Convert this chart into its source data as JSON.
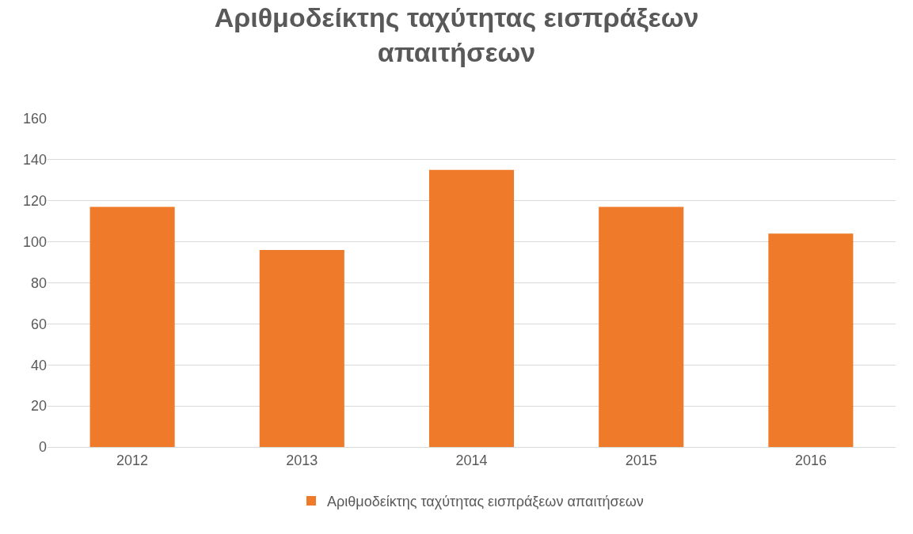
{
  "chart_data": {
    "type": "bar",
    "title": "Αριθμοδείκτης ταχύτητας εισπράξεων\nαπαιτήσεων",
    "categories": [
      "2012",
      "2013",
      "2014",
      "2015",
      "2016"
    ],
    "series": [
      {
        "name": "Αριθμοδείκτης ταχύτητας εισπράξεων απαιτήσεων",
        "color": "#ef7b2a",
        "values": [
          117,
          96,
          135,
          117,
          104
        ]
      }
    ],
    "ylim": [
      0,
      160
    ],
    "yticks": [
      0,
      20,
      40,
      60,
      80,
      100,
      120,
      140,
      160
    ],
    "grid": "y",
    "legend": "bottom"
  }
}
